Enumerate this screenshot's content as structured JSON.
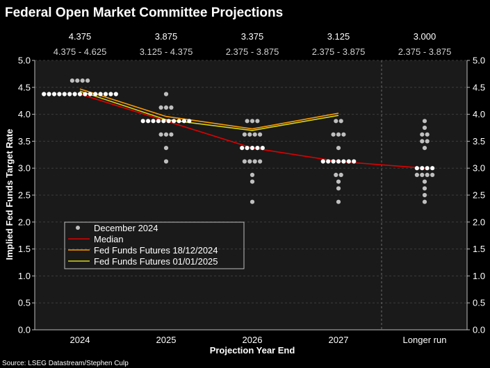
{
  "chart_data": {
    "type": "scatter",
    "title": "Federal Open Market Committee Projections",
    "xlabel": "Projection Year End",
    "ylabel": "Implied Fed Funds Target Rate",
    "source": "Source: LSEG Datastream/Stephen Culp",
    "categories": [
      "2024",
      "2025",
      "2026",
      "2027",
      "Longer run"
    ],
    "ylim": [
      0,
      5
    ],
    "yticks": [
      "0.0",
      "0.5",
      "1.0",
      "1.5",
      "2.0",
      "2.5",
      "3.0",
      "3.5",
      "4.0",
      "4.5",
      "5.0"
    ],
    "grid": "horizontal dashed",
    "median_labels": [
      "4.375",
      "3.875",
      "3.375",
      "3.125",
      "3.000"
    ],
    "range_labels": [
      "4.375 - 4.625",
      "3.125 - 4.375",
      "2.375 - 3.875",
      "2.375 - 3.875",
      "2.375 - 3.875"
    ],
    "dots": [
      [
        {
          "value": 4.625,
          "count": 4
        },
        {
          "value": 4.375,
          "count": 15
        }
      ],
      [
        {
          "value": 4.375,
          "count": 1
        },
        {
          "value": 4.125,
          "count": 3
        },
        {
          "value": 3.875,
          "count": 10
        },
        {
          "value": 3.625,
          "count": 3
        },
        {
          "value": 3.375,
          "count": 1
        },
        {
          "value": 3.125,
          "count": 1
        }
      ],
      [
        {
          "value": 3.875,
          "count": 3
        },
        {
          "value": 3.625,
          "count": 4
        },
        {
          "value": 3.375,
          "count": 5
        },
        {
          "value": 3.125,
          "count": 4
        },
        {
          "value": 2.875,
          "count": 1
        },
        {
          "value": 2.75,
          "count": 1
        },
        {
          "value": 2.375,
          "count": 1
        }
      ],
      [
        {
          "value": 3.875,
          "count": 2
        },
        {
          "value": 3.625,
          "count": 3
        },
        {
          "value": 3.375,
          "count": 1
        },
        {
          "value": 3.125,
          "count": 7
        },
        {
          "value": 2.875,
          "count": 2
        },
        {
          "value": 2.75,
          "count": 1
        },
        {
          "value": 2.625,
          "count": 1
        },
        {
          "value": 2.375,
          "count": 1
        }
      ],
      [
        {
          "value": 3.875,
          "count": 1
        },
        {
          "value": 3.75,
          "count": 1
        },
        {
          "value": 3.625,
          "count": 2
        },
        {
          "value": 3.5,
          "count": 2
        },
        {
          "value": 3.375,
          "count": 1
        },
        {
          "value": 3.0,
          "count": 4
        },
        {
          "value": 2.875,
          "count": 4
        },
        {
          "value": 2.75,
          "count": 1
        },
        {
          "value": 2.625,
          "count": 1
        },
        {
          "value": 2.5,
          "count": 1
        },
        {
          "value": 2.375,
          "count": 1
        }
      ]
    ],
    "series": [
      {
        "name": "December 2024",
        "kind": "dots",
        "color": "#bfbfbf"
      },
      {
        "name": "Median",
        "kind": "line",
        "color": "#e00000",
        "values": [
          4.375,
          3.875,
          3.375,
          3.125,
          3.0
        ]
      },
      {
        "name": "Fed Funds Futures 18/12/2024",
        "kind": "line",
        "color": "#ff9900",
        "values": [
          4.47,
          3.96,
          3.73,
          4.02,
          null
        ]
      },
      {
        "name": "Fed Funds Futures 01/01/2025",
        "kind": "line",
        "color": "#d6d61a",
        "values": [
          4.43,
          3.9,
          3.7,
          3.98,
          null
        ]
      }
    ],
    "legend_position": "lower-left"
  }
}
